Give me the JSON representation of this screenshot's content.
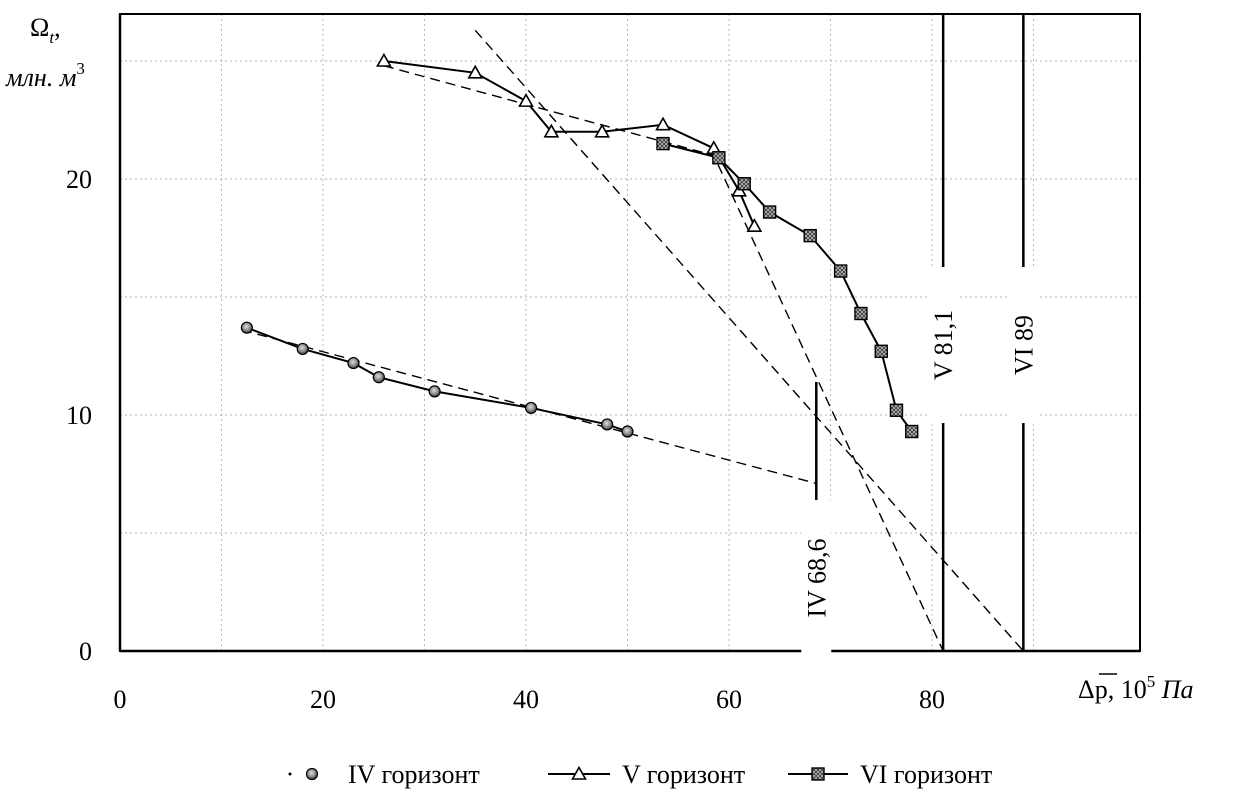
{
  "chart_data": {
    "type": "line",
    "ylabel_symbol": "Ω",
    "ylabel_sub": "t",
    "ylabel_sub_suffix": ",",
    "ylabel_unit": "млн. м",
    "ylabel_unit_exp": "3",
    "xlabel_symbol": "Δp",
    "xlabel_suffix": ", 10",
    "xlabel_exp": "5",
    "xlabel_unit": " Па",
    "xlim": [
      0,
      100
    ],
    "ylim": [
      0,
      27
    ],
    "xticks": [
      0,
      20,
      40,
      60,
      80
    ],
    "yticks": [
      0,
      10,
      20
    ],
    "grid": true,
    "legend_position": "bottom-center",
    "series": [
      {
        "name": "IV горизонт",
        "marker": "circle",
        "points": [
          [
            12.5,
            13.7
          ],
          [
            18,
            12.8
          ],
          [
            23,
            12.2
          ],
          [
            25.5,
            11.6
          ],
          [
            31,
            11.0
          ],
          [
            40.5,
            10.3
          ],
          [
            48,
            9.6
          ],
          [
            50,
            9.3
          ]
        ]
      },
      {
        "name": "V горизонт",
        "marker": "triangle",
        "points": [
          [
            26,
            25.0
          ],
          [
            35,
            24.5
          ],
          [
            40,
            23.3
          ],
          [
            42.5,
            22.0
          ],
          [
            47.5,
            22.0
          ],
          [
            53.5,
            22.3
          ],
          [
            58.5,
            21.3
          ],
          [
            61,
            19.5
          ],
          [
            62.5,
            18.0
          ]
        ]
      },
      {
        "name": "VI горизонт",
        "marker": "square",
        "points": [
          [
            53.5,
            21.5
          ],
          [
            59,
            20.9
          ],
          [
            61.5,
            19.8
          ],
          [
            64,
            18.6
          ],
          [
            68,
            17.6
          ],
          [
            71,
            16.1
          ],
          [
            73,
            14.3
          ],
          [
            75,
            12.7
          ],
          [
            76.5,
            10.2
          ],
          [
            78,
            9.3
          ]
        ]
      }
    ],
    "trend_lines": [
      {
        "series": "IV горизонт",
        "points": [
          [
            12,
            13.6
          ],
          [
            68.6,
            7.1
          ]
        ]
      },
      {
        "series": "V горизонт",
        "points": [
          [
            26,
            24.8
          ],
          [
            58.5,
            21.0
          ],
          [
            81.1,
            0
          ]
        ]
      },
      {
        "series": "VI горизонт",
        "points": [
          [
            35,
            26.3
          ],
          [
            89,
            0
          ]
        ]
      }
    ],
    "verticals": [
      {
        "x": 68.6,
        "y_from": 5.5,
        "y_to": 11.4,
        "label": "IV  68,6"
      },
      {
        "x": 81.1,
        "y_from": 0,
        "y_to": 27,
        "label": "V  81,1"
      },
      {
        "x": 89,
        "y_from": 0,
        "y_to": 27,
        "label": "VI  89"
      }
    ]
  },
  "legend": [
    {
      "label": "IV горизонт",
      "marker": "circle"
    },
    {
      "label": "V горизонт",
      "marker": "triangle"
    },
    {
      "label": "VI горизонт",
      "marker": "square"
    }
  ]
}
